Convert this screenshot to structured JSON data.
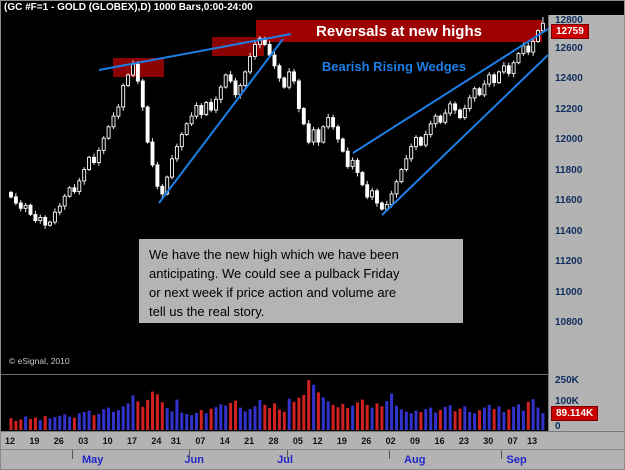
{
  "window": {
    "title": "(GC #F=1 - GOLD (GLOBEX),D) 1000 Bars,0:00-24:00"
  },
  "annotations": {
    "banner_label": "Reversals at new highs",
    "wedge_label": "Bearish Rising Wedges",
    "note_lines": [
      "We have the new high which we have been",
      "anticipating. We could see a pulback Friday",
      "or next week if price action and volume are",
      "tell us the real story."
    ],
    "copyright": "© eSignal, 2010"
  },
  "price_axis": {
    "ticks": [
      12800,
      12600,
      12400,
      12200,
      12000,
      11800,
      11600,
      11400,
      11200,
      11000,
      10800
    ],
    "last_price_label": "12759"
  },
  "volume_axis": {
    "ticks": [
      "250K",
      "100K",
      "0"
    ],
    "last_volume_label": "89.114K"
  },
  "date_axis": {
    "ticks": [
      "12",
      "19",
      "26",
      "03",
      "10",
      "17",
      "24",
      "31",
      "07",
      "14",
      "21",
      "28",
      "05",
      "12",
      "19",
      "26",
      "02",
      "09",
      "16",
      "23",
      "30",
      "07",
      "13"
    ],
    "tick_bars": [
      0,
      5,
      10,
      15,
      20,
      25,
      30,
      34,
      39,
      44,
      49,
      54,
      59,
      63,
      68,
      73,
      78,
      83,
      88,
      93,
      98,
      103,
      107
    ],
    "months": [
      {
        "label": "May",
        "bar": 17
      },
      {
        "label": "Jun",
        "bar": 38
      },
      {
        "label": "Jul",
        "bar": 57
      },
      {
        "label": "Aug",
        "bar": 83
      },
      {
        "label": "Sep",
        "bar": 104
      }
    ],
    "boundary_bars": [
      12.5,
      36.5,
      56.5,
      77.5,
      100.5
    ]
  },
  "colors": {
    "banner_red": "#9e0000",
    "box_red": "#8c0202",
    "badge_red": "#c80000",
    "trend_blue": "#1d7fe6",
    "vol_up": "#3232cd",
    "vol_down": "#d02020",
    "axis_text": "#0e2d5c",
    "month_text": "#2026c8",
    "candle_white": "#ffffff",
    "note_bg": "#b4b4b4"
  },
  "chart_data": {
    "type": "candlestick",
    "title": "GC #F=1 - GOLD (GLOBEX), Daily",
    "y_range": [
      10800,
      12800
    ],
    "x_range": [
      "Apr 12",
      "Sep 13"
    ],
    "legend": "upper pane: price candlesticks with bearish rising wedge trendlines; lower pane: volume",
    "first_open": 11650,
    "last_high": 12800,
    "last_close": 12759,
    "last_volume_k": 89.114,
    "closes": [
      11620,
      11580,
      11545,
      11565,
      11505,
      11465,
      11485,
      11435,
      11455,
      11520,
      11560,
      11625,
      11680,
      11655,
      11725,
      11800,
      11880,
      11845,
      11925,
      12005,
      12080,
      12150,
      12210,
      12350,
      12420,
      12490,
      12380,
      12210,
      11980,
      11830,
      11690,
      11640,
      11750,
      11870,
      11950,
      12030,
      12100,
      12150,
      12220,
      12160,
      12240,
      12190,
      12260,
      12340,
      12420,
      12380,
      12290,
      12350,
      12440,
      12540,
      12620,
      12660,
      12620,
      12550,
      12480,
      12400,
      12340,
      12440,
      12380,
      12200,
      12100,
      11980,
      12060,
      11980,
      12080,
      12140,
      12080,
      12000,
      11920,
      11820,
      11860,
      11780,
      11700,
      11620,
      11660,
      11580,
      11540,
      11570,
      11640,
      11720,
      11800,
      11870,
      11950,
      12010,
      11960,
      12030,
      12100,
      12150,
      12110,
      12170,
      12230,
      12190,
      12140,
      12200,
      12270,
      12330,
      12290,
      12360,
      12420,
      12370,
      12440,
      12480,
      12430,
      12500,
      12560,
      12610,
      12570,
      12640,
      12710,
      12759
    ],
    "volumes_k": [
      62,
      48,
      55,
      71,
      58,
      66,
      52,
      74,
      60,
      68,
      75,
      82,
      70,
      64,
      88,
      95,
      102,
      78,
      85,
      110,
      118,
      96,
      104,
      125,
      140,
      182,
      150,
      122,
      158,
      202,
      188,
      146,
      115,
      98,
      160,
      92,
      84,
      78,
      90,
      105,
      88,
      112,
      120,
      135,
      128,
      142,
      155,
      118,
      98,
      110,
      125,
      158,
      132,
      115,
      140,
      108,
      96,
      165,
      148,
      170,
      185,
      262,
      238,
      198,
      172,
      150,
      132,
      120,
      138,
      115,
      128,
      145,
      160,
      132,
      118,
      140,
      125,
      152,
      192,
      128,
      108,
      96,
      88,
      102,
      95,
      110,
      118,
      92,
      105,
      122,
      130,
      98,
      112,
      125,
      96,
      88,
      104,
      118,
      132,
      110,
      125,
      95,
      108,
      122,
      135,
      102,
      148,
      162,
      118,
      89
    ]
  }
}
